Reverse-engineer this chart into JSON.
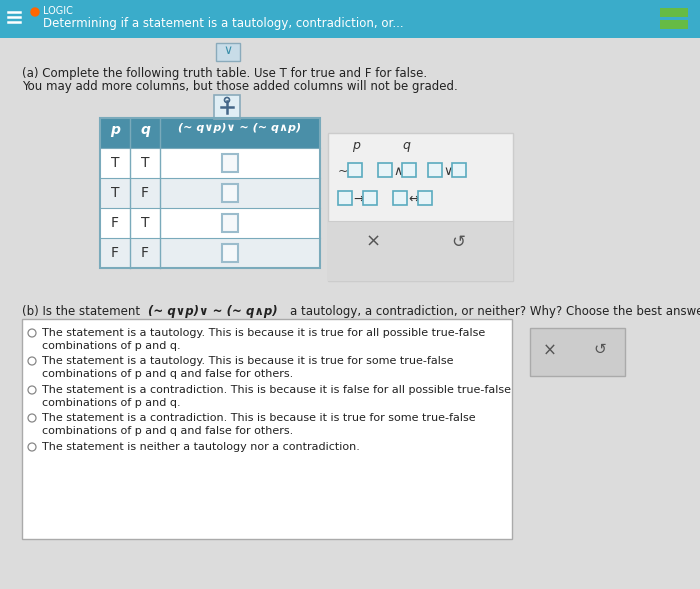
{
  "header_bg": "#3AACCA",
  "header_text_color": "#FFFFFF",
  "header_icon_color": "#FF6600",
  "header_title": "LOGIC",
  "header_subtitle": "Determining if a statement is a tautology, contradiction, or...",
  "body_bg": "#DCDCDC",
  "section_a_line1": "(a) Complete the following truth table. Use T for true and F for false.",
  "section_a_line2": "     You may add more columns, but those added columns will not be graded.",
  "truth_table_rows": [
    [
      "T",
      "T"
    ],
    [
      "T",
      "F"
    ],
    [
      "F",
      "T"
    ],
    [
      "F",
      "F"
    ]
  ],
  "table_header_bg": "#4A8FA8",
  "table_header_text": "#FFFFFF",
  "table_cell_alt_bg": "#E8EEF2",
  "table_cell_bg": "#FFFFFF",
  "table_border": "#7AAABB",
  "input_box_border": "#9BBCCC",
  "input_box_bg": "#F5F8FA",
  "formula_text": "(~ q∨p)∨ ~ (~ q∧p)",
  "right_panel_bg": "#F0F0F0",
  "right_panel_border": "#CCCCCC",
  "section_b_text1": "(b) Is the statement ",
  "section_b_formula": "(~ q∨p)∨ ~ (~ q∧p)",
  "section_b_text2": " a tautology, a contradiction, or neither? Why? Choose the best answer.",
  "choices": [
    [
      "The statement is a tautology. This is because it is true for all possible true-false",
      "combinations of ",
      "p",
      " and ",
      "q",
      "."
    ],
    [
      "The statement is a tautology. This is because it is true for some true-false",
      "combinations of ",
      "p",
      " and ",
      "q",
      " and false for others."
    ],
    [
      "The statement is a contradiction. This is because it is false for all possible true-false",
      "combinations of ",
      "p",
      " and ",
      "q",
      "."
    ],
    [
      "The statement is a contradiction. This is because it is true for some true-false",
      "combinations of ",
      "p",
      " and ",
      "q",
      " and false for others."
    ],
    [
      "The statement is neither a tautology nor a contradiction."
    ]
  ],
  "choice_box_bg": "#FFFFFF",
  "choice_box_border": "#AAAAAA",
  "right_box_bg": "#CCCCCC",
  "right_box_border": "#AAAAAA",
  "hamburger_color": "#FFFFFF",
  "green_btn": "#66BB44",
  "chevron_box_bg": "#C8DCE8",
  "chevron_box_border": "#8AAABB",
  "add_col_box_bg": "#E0EEF5",
  "add_col_box_border": "#8AAABB"
}
